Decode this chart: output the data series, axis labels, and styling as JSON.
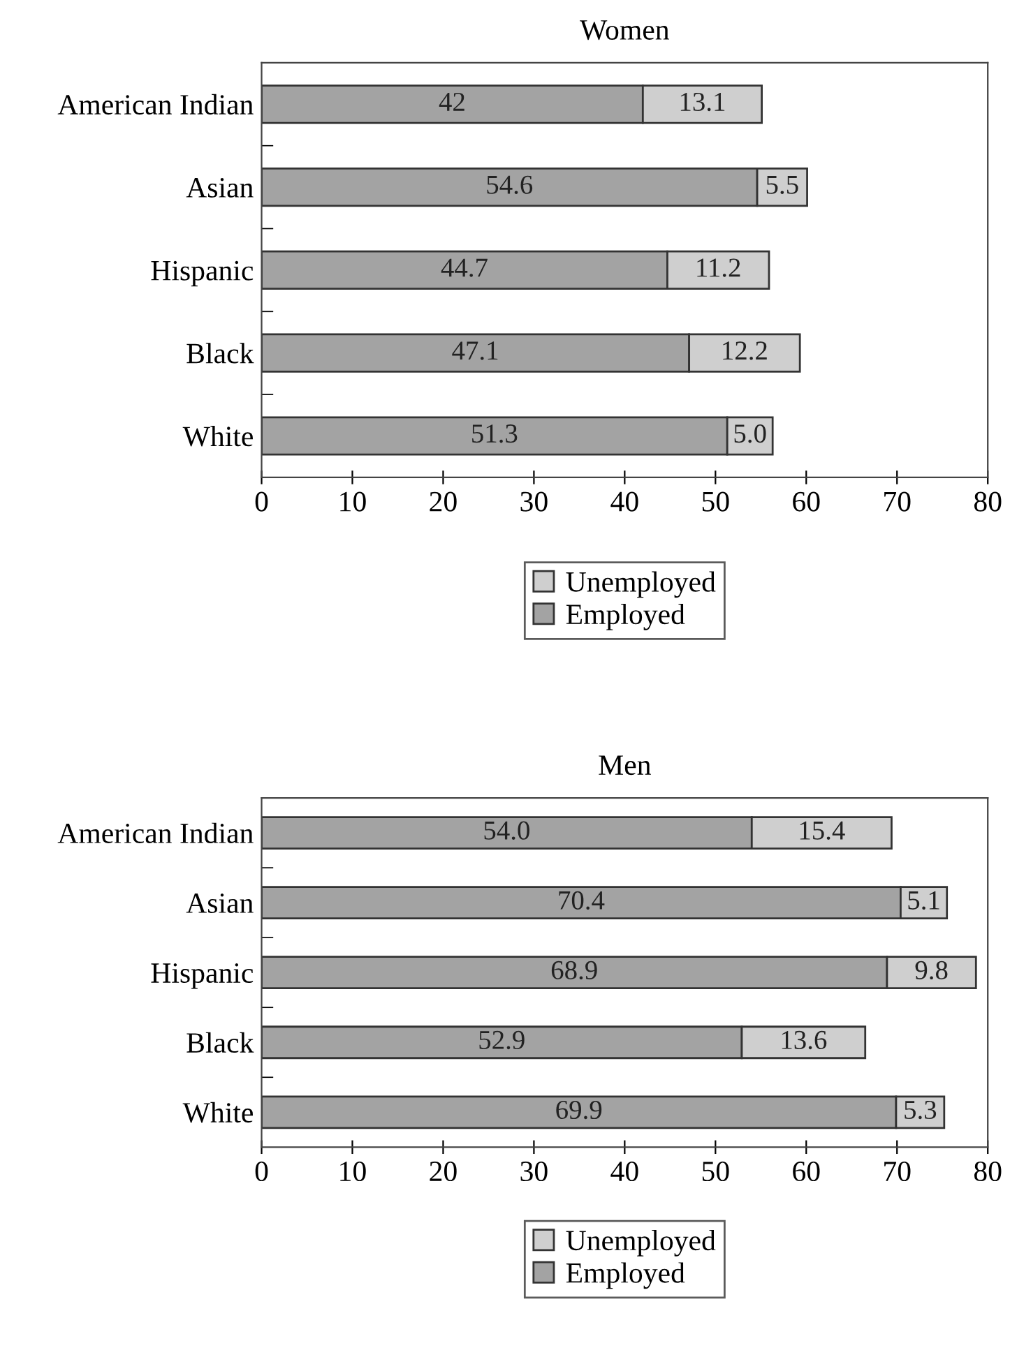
{
  "chart_data": [
    {
      "type": "bar",
      "title": "Women",
      "orientation": "horizontal",
      "stacked": true,
      "categories": [
        "American Indian",
        "Asian",
        "Hispanic",
        "Black",
        "White"
      ],
      "series": [
        {
          "name": "Employed",
          "color": "#a3a3a3",
          "values": [
            42,
            54.6,
            44.7,
            47.1,
            51.3
          ]
        },
        {
          "name": "Unemployed",
          "color": "#cfcfcf",
          "values": [
            13.1,
            5.5,
            11.2,
            12.2,
            5.0
          ]
        }
      ],
      "value_labels": [
        [
          "42",
          "54.6",
          "44.7",
          "47.1",
          "51.3"
        ],
        [
          "13.1",
          "5.5",
          "11.2",
          "12.2",
          "5.0"
        ]
      ],
      "xlim": [
        0,
        80
      ],
      "xticks": [
        0,
        10,
        20,
        30,
        40,
        50,
        60,
        70,
        80
      ],
      "grid": false,
      "legend": "bottom"
    },
    {
      "type": "bar",
      "title": "Men",
      "orientation": "horizontal",
      "stacked": true,
      "categories": [
        "American Indian",
        "Asian",
        "Hispanic",
        "Black",
        "White"
      ],
      "series": [
        {
          "name": "Employed",
          "color": "#a3a3a3",
          "values": [
            54.0,
            70.4,
            68.9,
            52.9,
            69.9
          ]
        },
        {
          "name": "Unemployed",
          "color": "#cfcfcf",
          "values": [
            15.4,
            5.1,
            9.8,
            13.6,
            5.3
          ]
        }
      ],
      "value_labels": [
        [
          "54.0",
          "70.4",
          "68.9",
          "52.9",
          "69.9"
        ],
        [
          "15.4",
          "5.1",
          "9.8",
          "13.6",
          "5.3"
        ]
      ],
      "xlim": [
        0,
        80
      ],
      "xticks": [
        0,
        10,
        20,
        30,
        40,
        50,
        60,
        70,
        80
      ],
      "grid": false,
      "legend": "bottom"
    }
  ]
}
